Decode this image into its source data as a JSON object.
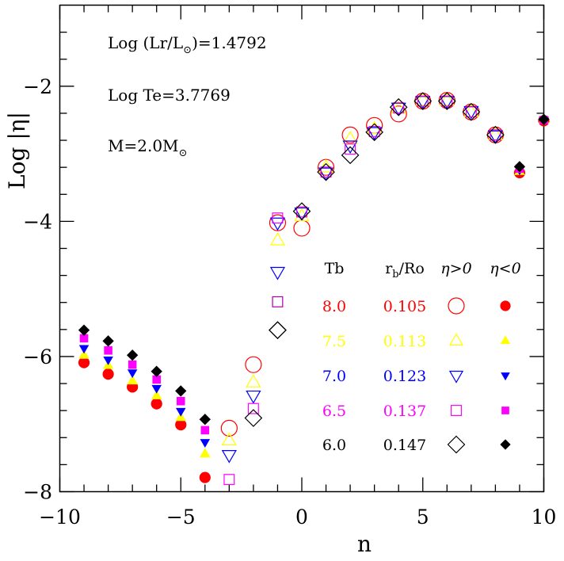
{
  "chart_data": {
    "type": "scatter",
    "title": "",
    "xlabel": "n",
    "ylabel": "Log |η|",
    "xlim": [
      -10,
      10
    ],
    "ylim": [
      -8,
      -0.8
    ],
    "x_ticks": [
      -10,
      -5,
      0,
      5,
      10
    ],
    "x_tick_labels": [
      "−10",
      "−5",
      "0",
      "5",
      "10"
    ],
    "y_ticks": [
      -8,
      -6,
      -4,
      -2
    ],
    "y_tick_labels": [
      "−8",
      "−6",
      "−4",
      "−2"
    ],
    "annotations": {
      "luminosity": {
        "prefix": "Log (Lr/L",
        "sub": "⊙",
        "suffix": ")=1.4792"
      },
      "temperature": "Log Te=3.7769",
      "mass": {
        "prefix": "M=2.0M",
        "sub": "⊙"
      }
    },
    "legend": {
      "placement": "center-right",
      "headers": {
        "tb": "Tb",
        "rb_main": "r",
        "rb_sub": "b",
        "rb_rest": "/Ro",
        "pos": "η>0",
        "neg": "η<0"
      },
      "rows": [
        {
          "tb": "8.0",
          "rb": "0.105",
          "color": "#ff0000",
          "pos_marker": "circle-open",
          "neg_marker": "circle-filled"
        },
        {
          "tb": "7.5",
          "rb": "0.113",
          "color": "#ffff00",
          "pos_marker": "triangle-open",
          "neg_marker": "triangle-filled"
        },
        {
          "tb": "7.0",
          "rb": "0.123",
          "color": "#0000ff",
          "pos_marker": "triangle-down-open",
          "neg_marker": "triangle-down-filled"
        },
        {
          "tb": "6.5",
          "rb": "0.137",
          "color": "#ff00ff",
          "pos_marker": "square-open",
          "neg_marker": "square-filled"
        },
        {
          "tb": "6.0",
          "rb": "0.147",
          "color": "#000000",
          "pos_marker": "diamond-open",
          "neg_marker": "diamond-filled"
        }
      ]
    },
    "series": [
      {
        "name": "Tb=8.0",
        "color": "#ff0000",
        "open": "circle",
        "filled": "circle",
        "points": [
          {
            "n": -9,
            "v": -6.09,
            "s": "neg"
          },
          {
            "n": -8,
            "v": -6.26,
            "s": "neg"
          },
          {
            "n": -7,
            "v": -6.45,
            "s": "neg"
          },
          {
            "n": -6,
            "v": -6.7,
            "s": "neg"
          },
          {
            "n": -5,
            "v": -7.01,
            "s": "neg"
          },
          {
            "n": -4,
            "v": -7.79,
            "s": "neg"
          },
          {
            "n": -3,
            "v": -7.06,
            "s": "pos"
          },
          {
            "n": -2,
            "v": -6.12,
            "s": "pos"
          },
          {
            "n": -1,
            "v": -4.02,
            "s": "pos"
          },
          {
            "n": 0,
            "v": -4.1,
            "s": "pos"
          },
          {
            "n": 1,
            "v": -3.2,
            "s": "pos"
          },
          {
            "n": 2,
            "v": -2.72,
            "s": "pos"
          },
          {
            "n": 3,
            "v": -2.58,
            "s": "pos"
          },
          {
            "n": 4,
            "v": -2.41,
            "s": "pos"
          },
          {
            "n": 5,
            "v": -2.22,
            "s": "pos"
          },
          {
            "n": 6,
            "v": -2.21,
            "s": "pos"
          },
          {
            "n": 7,
            "v": -2.38,
            "s": "pos"
          },
          {
            "n": 8,
            "v": -2.72,
            "s": "pos"
          },
          {
            "n": 9,
            "v": -3.28,
            "s": "neg"
          },
          {
            "n": 10,
            "v": -2.51,
            "s": "neg"
          }
        ]
      },
      {
        "name": "Tb=7.5",
        "color": "#ffff00",
        "open": "triangle",
        "filled": "triangle",
        "points": [
          {
            "n": -9,
            "v": -5.98,
            "s": "neg"
          },
          {
            "n": -8,
            "v": -6.13,
            "s": "neg"
          },
          {
            "n": -7,
            "v": -6.36,
            "s": "neg"
          },
          {
            "n": -6,
            "v": -6.58,
            "s": "neg"
          },
          {
            "n": -5,
            "v": -6.9,
            "s": "neg"
          },
          {
            "n": -4,
            "v": -7.44,
            "s": "neg"
          },
          {
            "n": -3,
            "v": -7.24,
            "s": "pos"
          },
          {
            "n": -2,
            "v": -6.38,
            "s": "pos"
          },
          {
            "n": -1,
            "v": -4.28,
            "s": "pos"
          },
          {
            "n": 0,
            "v": -3.92,
            "s": "pos"
          },
          {
            "n": 1,
            "v": -3.2,
            "s": "pos"
          },
          {
            "n": 2,
            "v": -2.78,
            "s": "pos"
          },
          {
            "n": 3,
            "v": -2.63,
            "s": "pos"
          },
          {
            "n": 4,
            "v": -2.33,
            "s": "pos"
          },
          {
            "n": 5,
            "v": -2.21,
            "s": "pos"
          },
          {
            "n": 6,
            "v": -2.21,
            "s": "pos"
          },
          {
            "n": 7,
            "v": -2.38,
            "s": "pos"
          },
          {
            "n": 8,
            "v": -2.72,
            "s": "pos"
          },
          {
            "n": 9,
            "v": -3.26,
            "s": "neg"
          },
          {
            "n": 10,
            "v": -2.5,
            "s": "neg"
          }
        ]
      },
      {
        "name": "Tb=7.0",
        "color": "#0000ff",
        "open": "triangle-down",
        "filled": "triangle-down",
        "points": [
          {
            "n": -9,
            "v": -5.88,
            "s": "neg"
          },
          {
            "n": -8,
            "v": -6.05,
            "s": "neg"
          },
          {
            "n": -7,
            "v": -6.24,
            "s": "neg"
          },
          {
            "n": -6,
            "v": -6.47,
            "s": "neg"
          },
          {
            "n": -5,
            "v": -6.81,
            "s": "neg"
          },
          {
            "n": -4,
            "v": -7.27,
            "s": "neg"
          },
          {
            "n": -3,
            "v": -7.46,
            "s": "pos"
          },
          {
            "n": -2,
            "v": -6.58,
            "s": "pos"
          },
          {
            "n": -1,
            "v": -4.02,
            "s": "pos"
          },
          {
            "n": 0,
            "v": -3.87,
            "s": "pos"
          },
          {
            "n": 1,
            "v": -3.28,
            "s": "pos"
          },
          {
            "n": 2,
            "v": -2.88,
            "s": "pos"
          },
          {
            "n": 3,
            "v": -2.68,
            "s": "pos"
          },
          {
            "n": 4,
            "v": -2.32,
            "s": "pos"
          },
          {
            "n": 5,
            "v": -2.22,
            "s": "pos"
          },
          {
            "n": 6,
            "v": -2.22,
            "s": "pos"
          },
          {
            "n": 7,
            "v": -2.37,
            "s": "pos"
          },
          {
            "n": 8,
            "v": -2.73,
            "s": "pos"
          },
          {
            "n": 9,
            "v": -3.24,
            "s": "neg"
          },
          {
            "n": 10,
            "v": -2.5,
            "s": "neg"
          }
        ]
      },
      {
        "name": "Tb=6.5",
        "color": "#ff00ff",
        "open": "square",
        "filled": "square",
        "points": [
          {
            "n": -9,
            "v": -5.73,
            "s": "neg"
          },
          {
            "n": -8,
            "v": -5.91,
            "s": "neg"
          },
          {
            "n": -7,
            "v": -6.12,
            "s": "neg"
          },
          {
            "n": -6,
            "v": -6.34,
            "s": "neg"
          },
          {
            "n": -5,
            "v": -6.66,
            "s": "neg"
          },
          {
            "n": -4,
            "v": -7.09,
            "s": "neg"
          },
          {
            "n": -3,
            "v": -7.82,
            "s": "pos"
          },
          {
            "n": -2,
            "v": -6.77,
            "s": "pos"
          },
          {
            "n": -1,
            "v": -3.95,
            "s": "pos"
          },
          {
            "n": 0,
            "v": -3.86,
            "s": "pos"
          },
          {
            "n": 1,
            "v": -3.27,
            "s": "pos"
          },
          {
            "n": 2,
            "v": -2.93,
            "s": "pos"
          },
          {
            "n": 3,
            "v": -2.67,
            "s": "pos"
          },
          {
            "n": 4,
            "v": -2.32,
            "s": "pos"
          },
          {
            "n": 5,
            "v": -2.22,
            "s": "pos"
          },
          {
            "n": 6,
            "v": -2.22,
            "s": "pos"
          },
          {
            "n": 7,
            "v": -2.38,
            "s": "pos"
          },
          {
            "n": 8,
            "v": -2.72,
            "s": "pos"
          },
          {
            "n": 9,
            "v": -3.22,
            "s": "neg"
          },
          {
            "n": 10,
            "v": -2.5,
            "s": "neg"
          }
        ]
      },
      {
        "name": "Tb=6.0",
        "color": "#000000",
        "open": "diamond",
        "filled": "diamond",
        "points": [
          {
            "n": -9,
            "v": -5.61,
            "s": "neg"
          },
          {
            "n": -8,
            "v": -5.77,
            "s": "neg"
          },
          {
            "n": -7,
            "v": -5.98,
            "s": "neg"
          },
          {
            "n": -6,
            "v": -6.22,
            "s": "neg"
          },
          {
            "n": -5,
            "v": -6.51,
            "s": "neg"
          },
          {
            "n": -4,
            "v": -6.93,
            "s": "neg"
          },
          {
            "n": -2,
            "v": -6.91,
            "s": "pos"
          },
          {
            "n": -1,
            "v": -5.61,
            "s": "pos"
          },
          {
            "n": 0,
            "v": -3.85,
            "s": "pos"
          },
          {
            "n": 1,
            "v": -3.27,
            "s": "pos"
          },
          {
            "n": 2,
            "v": -3.02,
            "s": "pos"
          },
          {
            "n": 3,
            "v": -2.68,
            "s": "pos"
          },
          {
            "n": 4,
            "v": -2.31,
            "s": "pos"
          },
          {
            "n": 5,
            "v": -2.22,
            "s": "pos"
          },
          {
            "n": 6,
            "v": -2.22,
            "s": "pos"
          },
          {
            "n": 7,
            "v": -2.38,
            "s": "pos"
          },
          {
            "n": 8,
            "v": -2.72,
            "s": "pos"
          },
          {
            "n": 9,
            "v": -3.19,
            "s": "neg"
          },
          {
            "n": 10,
            "v": -2.49,
            "s": "neg"
          }
        ]
      }
    ],
    "legend_markers": [
      {
        "shape": "triangle-down",
        "color": "#0000ff",
        "fill": "open",
        "n": -1,
        "v": -4.75
      },
      {
        "shape": "square",
        "color": "#aa00aa",
        "fill": "open",
        "n": -1,
        "v": -5.19
      },
      {
        "shape": "diamond",
        "color": "#000000",
        "fill": "open",
        "n": -1,
        "v": -5.61
      }
    ]
  }
}
